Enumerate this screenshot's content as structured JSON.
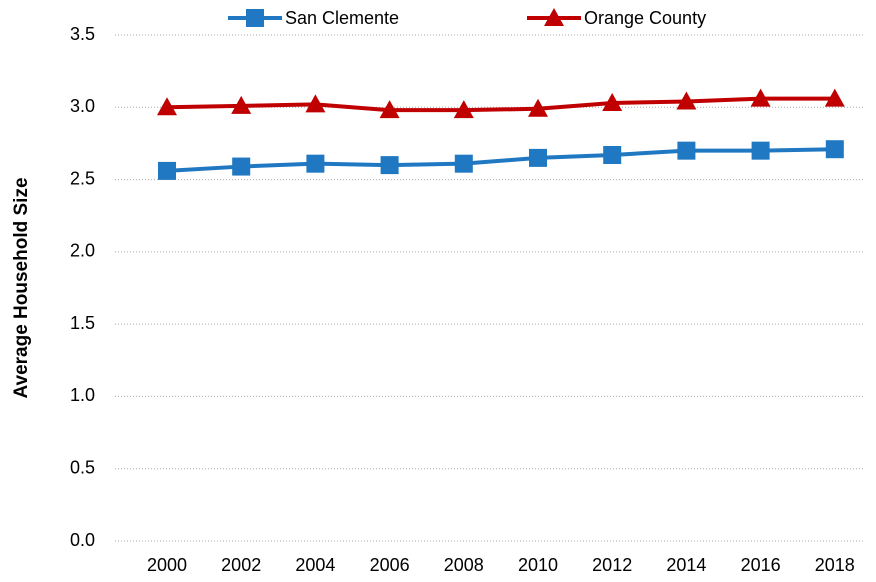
{
  "chart_data": {
    "type": "line",
    "y_label": "Average Household Size",
    "categories": [
      "2000",
      "2002",
      "2004",
      "2006",
      "2008",
      "2010",
      "2012",
      "2014",
      "2016",
      "2018"
    ],
    "series": [
      {
        "name": "San Clemente",
        "color": "#1f78c1",
        "marker": "square",
        "values": [
          2.56,
          2.59,
          2.61,
          2.6,
          2.61,
          2.65,
          2.67,
          2.7,
          2.7,
          2.71
        ]
      },
      {
        "name": "Orange County",
        "color": "#c00000",
        "marker": "triangle",
        "values": [
          3.0,
          3.01,
          3.02,
          2.98,
          2.98,
          2.99,
          3.03,
          3.04,
          3.06,
          3.06
        ]
      }
    ],
    "ylim": [
      0,
      3.5
    ],
    "yticks": [
      {
        "value": 0,
        "label": "0.0"
      },
      0.5,
      {
        "value": 1,
        "label": "1.0"
      },
      1.5,
      {
        "value": 2,
        "label": "2.0"
      },
      2.5,
      {
        "value": 3,
        "label": "3.0"
      },
      3.5
    ],
    "grid": true,
    "legend": "top"
  }
}
